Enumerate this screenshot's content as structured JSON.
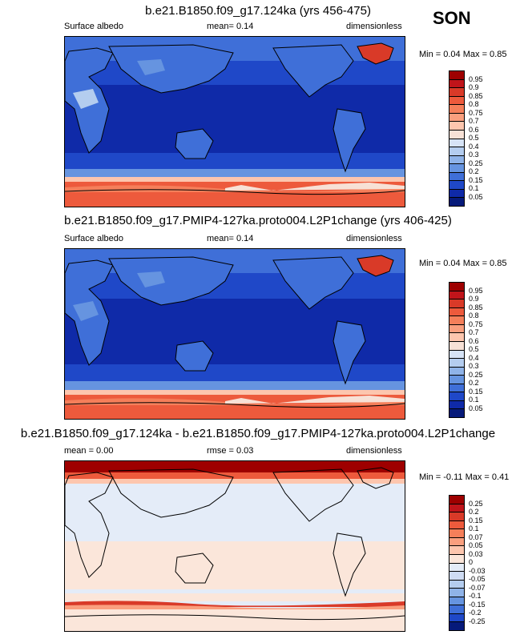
{
  "season": "SON",
  "panels": [
    {
      "title": "b.e21.B1850.f09_g17.124ka (yrs 456-475)",
      "left_label": "Surface albedo",
      "center_label": "mean=  0.14",
      "right_label": "dimensionless",
      "minmax": "Min =  0.04 Max =  0.85",
      "colorbar_labels": [
        "0.95",
        "0.9",
        "0.85",
        "0.8",
        "0.75",
        "0.7",
        "0.6",
        "0.5",
        "0.4",
        "0.3",
        "0.25",
        "0.2",
        "0.15",
        "0.1",
        "0.05"
      ],
      "colorbar_colors": [
        "#9e0000",
        "#c0141a",
        "#d93a28",
        "#ed5a3c",
        "#f57f5a",
        "#fa9f7e",
        "#fdc6ae",
        "#f7e1d6",
        "#d6e3f6",
        "#b4cdef",
        "#8fb3e8",
        "#6694e0",
        "#3f6fd8",
        "#1f48c8",
        "#0f2aa8",
        "#061a7a"
      ]
    },
    {
      "title": "b.e21.B1850.f09_g17.PMIP4-127ka.proto004.L2P1change (yrs 406-425)",
      "left_label": "Surface albedo",
      "center_label": "mean=  0.14",
      "right_label": "dimensionless",
      "minmax": "Min =  0.04 Max =  0.85",
      "colorbar_labels": [
        "0.95",
        "0.9",
        "0.85",
        "0.8",
        "0.75",
        "0.7",
        "0.6",
        "0.5",
        "0.4",
        "0.3",
        "0.25",
        "0.2",
        "0.15",
        "0.1",
        "0.05"
      ],
      "colorbar_colors": [
        "#9e0000",
        "#c0141a",
        "#d93a28",
        "#ed5a3c",
        "#f57f5a",
        "#fa9f7e",
        "#fdc6ae",
        "#f7e1d6",
        "#d6e3f6",
        "#b4cdef",
        "#8fb3e8",
        "#6694e0",
        "#3f6fd8",
        "#1f48c8",
        "#0f2aa8",
        "#061a7a"
      ]
    },
    {
      "title": "b.e21.B1850.f09_g17.124ka - b.e21.B1850.f09_g17.PMIP4-127ka.proto004.L2P1change",
      "left_label": "mean =  0.00",
      "center_label": "rmse =  0.03",
      "right_label": "dimensionless",
      "minmax": "Min =  -0.11 Max =  0.41",
      "colorbar_labels": [
        "0.25",
        "0.2",
        "0.15",
        "0.1",
        "0.07",
        "0.05",
        "0.03",
        "0",
        "-0.03",
        "-0.05",
        "-0.07",
        "-0.1",
        "-0.15",
        "-0.2",
        "-0.25"
      ],
      "colorbar_colors": [
        "#9e0000",
        "#c0141a",
        "#d93a28",
        "#ed5a3c",
        "#f57f5a",
        "#fa9f7e",
        "#fdc6ae",
        "#fbe6da",
        "#e4ecf8",
        "#cfdcf3",
        "#b4cdef",
        "#8fb3e8",
        "#6694e0",
        "#3f6fd8",
        "#1f48c8",
        "#061a7a"
      ]
    }
  ]
}
